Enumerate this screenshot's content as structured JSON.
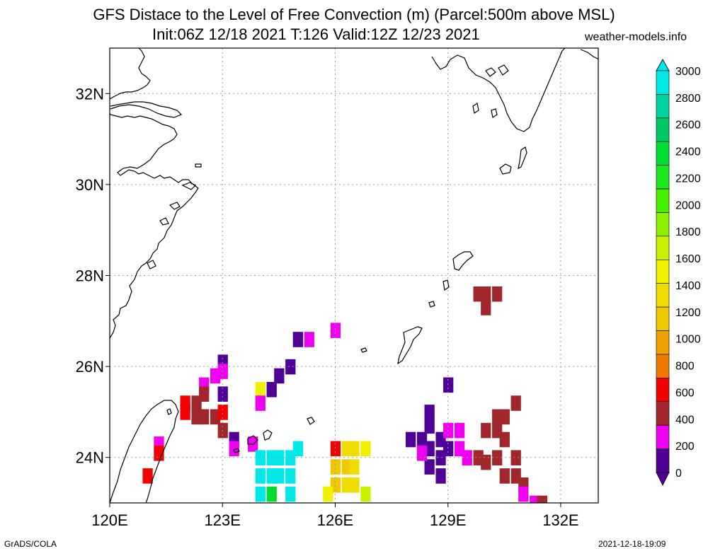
{
  "header": {
    "title_line1": "GFS Distace to the Level of Free Convection (m) (Parcel:500m above MSL)",
    "title_line2": "Init:06Z 12/18 2021 T:126 Valid:12Z 12/23 2021",
    "site": "weather-models.info"
  },
  "footer": {
    "left": "GrADS/COLA",
    "right": "2021-12-18-19:09"
  },
  "map": {
    "lat_ticks": [
      {
        "value": 32,
        "label": "32N"
      },
      {
        "value": 30,
        "label": "30N"
      },
      {
        "value": 28,
        "label": "28N"
      },
      {
        "value": 26,
        "label": "26N"
      },
      {
        "value": 24,
        "label": "24N"
      }
    ],
    "lon_ticks": [
      {
        "value": 120,
        "label": "120E"
      },
      {
        "value": 123,
        "label": "123E"
      },
      {
        "value": 126,
        "label": "126E"
      },
      {
        "value": 129,
        "label": "129E"
      },
      {
        "value": 132,
        "label": "132E"
      }
    ],
    "lon_range": [
      120,
      133
    ],
    "lat_range": [
      23,
      33
    ],
    "grid_lons": [
      123,
      126,
      129,
      132
    ],
    "grid_lats": [
      24,
      26,
      28,
      30,
      32
    ]
  },
  "colorbar": {
    "labels": [
      "3000",
      "2800",
      "2600",
      "2400",
      "2200",
      "2000",
      "1800",
      "1600",
      "1400",
      "1200",
      "1000",
      "800",
      "600",
      "400",
      "200",
      "0"
    ],
    "colors_top_to_bottom": [
      "#00e8e8",
      "#00d2a0",
      "#00c864",
      "#00dc32",
      "#1ee61e",
      "#46f000",
      "#8cf000",
      "#c8f000",
      "#f0f000",
      "#f0dc00",
      "#f0c800",
      "#f0a000",
      "#f07800",
      "#f00000",
      "#a0282d",
      "#f000f0",
      "#500096"
    ]
  },
  "field": {
    "palette": {
      "0": "#500096",
      "1": "#f000f0",
      "2": "#a0282d",
      "3": "#f00000",
      "4": "#f07800",
      "5": "#f0a000",
      "6": "#f0c800",
      "7": "#f0dc00",
      "8": "#f0f000",
      "9": "#c8f000",
      "10": "#46f000",
      "11": "#00dc32",
      "12": "#00e8e8"
    },
    "cells": [
      [
        123.0,
        26.1,
        0
      ],
      [
        123.0,
        25.9,
        1
      ],
      [
        122.8,
        25.8,
        1
      ],
      [
        122.5,
        25.6,
        1
      ],
      [
        122.5,
        25.4,
        2
      ],
      [
        122.3,
        25.2,
        2
      ],
      [
        122.0,
        25.2,
        3
      ],
      [
        122.0,
        25.0,
        3
      ],
      [
        122.3,
        24.9,
        2
      ],
      [
        122.5,
        24.9,
        2
      ],
      [
        122.8,
        24.9,
        2
      ],
      [
        123.0,
        25.0,
        3
      ],
      [
        123.0,
        25.4,
        0
      ],
      [
        123.0,
        24.6,
        2
      ],
      [
        123.3,
        24.4,
        0
      ],
      [
        123.3,
        24.2,
        1
      ],
      [
        121.3,
        24.3,
        1
      ],
      [
        121.3,
        24.1,
        3
      ],
      [
        121.0,
        23.6,
        3
      ],
      [
        124.0,
        25.5,
        8
      ],
      [
        124.3,
        25.5,
        0
      ],
      [
        124.0,
        25.2,
        1
      ],
      [
        124.5,
        25.8,
        0
      ],
      [
        124.8,
        26.0,
        0
      ],
      [
        125.0,
        26.6,
        0
      ],
      [
        125.3,
        26.6,
        1
      ],
      [
        126.0,
        26.8,
        1
      ],
      [
        123.8,
        24.3,
        1
      ],
      [
        124.0,
        24.0,
        12
      ],
      [
        124.3,
        24.0,
        12
      ],
      [
        124.5,
        24.0,
        12
      ],
      [
        124.8,
        24.0,
        12
      ],
      [
        125.0,
        24.2,
        12
      ],
      [
        124.0,
        23.6,
        12
      ],
      [
        124.3,
        23.6,
        12
      ],
      [
        124.5,
        23.6,
        12
      ],
      [
        124.8,
        23.6,
        12
      ],
      [
        124.3,
        23.2,
        11
      ],
      [
        124.8,
        23.2,
        12
      ],
      [
        124.0,
        23.2,
        12
      ],
      [
        126.0,
        24.2,
        3
      ],
      [
        126.3,
        24.2,
        7
      ],
      [
        126.5,
        24.2,
        7
      ],
      [
        126.8,
        24.2,
        8
      ],
      [
        126.0,
        23.8,
        6
      ],
      [
        126.3,
        23.8,
        6
      ],
      [
        126.5,
        23.8,
        7
      ],
      [
        126.0,
        23.4,
        6
      ],
      [
        126.3,
        23.4,
        7
      ],
      [
        126.5,
        23.4,
        7
      ],
      [
        126.8,
        23.2,
        9
      ],
      [
        125.8,
        23.2,
        8
      ],
      [
        128.0,
        24.4,
        0
      ],
      [
        128.3,
        24.4,
        0
      ],
      [
        128.5,
        24.7,
        0
      ],
      [
        128.8,
        24.4,
        0
      ],
      [
        128.5,
        24.2,
        0
      ],
      [
        128.8,
        24.0,
        0
      ],
      [
        128.5,
        23.8,
        0
      ],
      [
        128.8,
        23.6,
        0
      ],
      [
        128.3,
        24.1,
        1
      ],
      [
        128.5,
        25.0,
        0
      ],
      [
        129.0,
        25.6,
        0
      ],
      [
        129.0,
        24.6,
        1
      ],
      [
        129.3,
        24.6,
        1
      ],
      [
        129.3,
        24.2,
        1
      ],
      [
        129.0,
        24.2,
        0
      ],
      [
        129.5,
        24.0,
        1
      ],
      [
        129.8,
        24.0,
        2
      ],
      [
        130.0,
        24.6,
        2
      ],
      [
        130.3,
        24.6,
        2
      ],
      [
        130.3,
        24.9,
        2
      ],
      [
        130.5,
        24.9,
        2
      ],
      [
        130.8,
        25.2,
        2
      ],
      [
        130.5,
        24.4,
        2
      ],
      [
        130.8,
        24.0,
        2
      ],
      [
        130.3,
        24.0,
        2
      ],
      [
        130.0,
        23.9,
        2
      ],
      [
        130.5,
        23.6,
        2
      ],
      [
        130.8,
        23.6,
        2
      ],
      [
        131.0,
        23.4,
        2
      ],
      [
        131.0,
        23.2,
        1
      ],
      [
        131.3,
        23.0,
        1
      ],
      [
        131.5,
        23.0,
        2
      ],
      [
        129.8,
        27.6,
        2
      ],
      [
        130.0,
        27.6,
        2
      ],
      [
        130.3,
        27.6,
        2
      ],
      [
        130.0,
        27.3,
        2
      ]
    ]
  }
}
